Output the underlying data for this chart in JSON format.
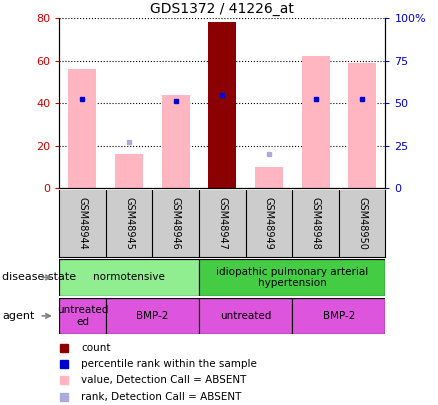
{
  "title": "GDS1372 / 41226_at",
  "samples": [
    "GSM48944",
    "GSM48945",
    "GSM48946",
    "GSM48947",
    "GSM48949",
    "GSM48948",
    "GSM48950"
  ],
  "values": [
    56,
    16,
    44,
    78,
    10,
    62,
    59
  ],
  "ranks_present": [
    42,
    null,
    41,
    44,
    null,
    42,
    42
  ],
  "ranks_absent": [
    null,
    22,
    null,
    null,
    16,
    null,
    null
  ],
  "count_index": 3,
  "left_ylim": [
    0,
    80
  ],
  "right_ylim": [
    0,
    100
  ],
  "left_yticks": [
    0,
    20,
    40,
    60,
    80
  ],
  "right_yticks": [
    0,
    25,
    50,
    75,
    100
  ],
  "right_yticklabels": [
    "0",
    "25",
    "50",
    "75",
    "100%"
  ],
  "bar_color_normal": "#FFB6C1",
  "bar_color_count": "#8B0000",
  "rank_color_present": "#0000CC",
  "rank_color_absent": "#AAAADD",
  "disease_states": [
    {
      "label": "normotensive",
      "start": 0,
      "end": 3,
      "color": "#90EE90"
    },
    {
      "label": "idiopathic pulmonary arterial\nhypertension",
      "start": 3,
      "end": 7,
      "color": "#44CC44"
    }
  ],
  "agent_states": [
    {
      "label": "untreated\ned",
      "start": 0,
      "end": 1,
      "color": "#DD55DD"
    },
    {
      "label": "BMP-2",
      "start": 1,
      "end": 3,
      "color": "#DD55DD"
    },
    {
      "label": "untreated",
      "start": 3,
      "end": 5,
      "color": "#DD55DD"
    },
    {
      "label": "BMP-2",
      "start": 5,
      "end": 7,
      "color": "#DD55DD"
    }
  ],
  "legend_items": [
    {
      "color": "#8B0000",
      "label": "count"
    },
    {
      "color": "#0000CC",
      "label": "percentile rank within the sample"
    },
    {
      "color": "#FFB6C1",
      "label": "value, Detection Call = ABSENT"
    },
    {
      "color": "#AAAADD",
      "label": "rank, Detection Call = ABSENT"
    }
  ],
  "tick_label_color": "#CC0000",
  "right_tick_color": "#0000CC",
  "xtick_area_color": "#CCCCCC",
  "grid_linestyle": "dotted",
  "grid_color": "#000000"
}
